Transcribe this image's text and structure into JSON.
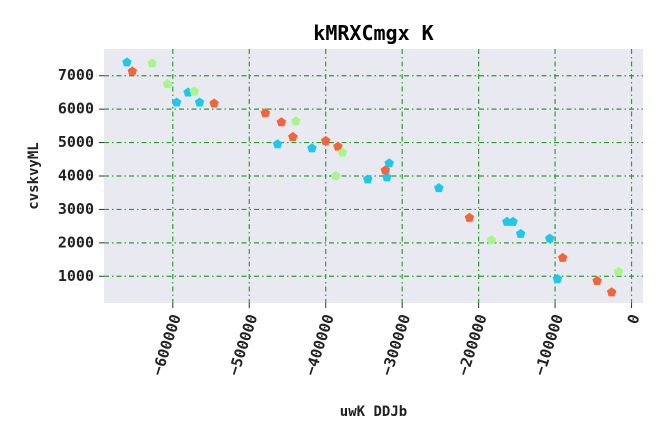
{
  "chart_data": {
    "type": "scatter",
    "title": "kMRXCmgx K",
    "xlabel": "uwK DDJb",
    "ylabel": "cvskvyML",
    "xlim": [
      -690000,
      15000
    ],
    "ylim": [
      200,
      7800
    ],
    "xticks": [
      -600000,
      -500000,
      -400000,
      -300000,
      -200000,
      -100000,
      0
    ],
    "xtick_labels": [
      "−600000",
      "−500000",
      "−400000",
      "−300000",
      "−200000",
      "−100000",
      "0"
    ],
    "yticks": [
      1000,
      2000,
      3000,
      4000,
      5000,
      6000,
      7000
    ],
    "ytick_labels": [
      "1000",
      "2000",
      "3000",
      "4000",
      "5000",
      "6000",
      "7000"
    ],
    "grid": true,
    "background": "#e9e9f2",
    "grid_color": "#2e9e2e",
    "marker": "pentagon",
    "series": [
      {
        "color": "#1ec8ea",
        "points": [
          [
            -660000,
            7400
          ],
          [
            -595000,
            6200
          ],
          [
            -580000,
            6500
          ],
          [
            -565000,
            6200
          ],
          [
            -463000,
            4950
          ],
          [
            -418000,
            4830
          ],
          [
            -345000,
            3900
          ],
          [
            -320000,
            3960
          ],
          [
            -317000,
            4380
          ],
          [
            -252000,
            3640
          ],
          [
            -163000,
            2630
          ],
          [
            -155000,
            2630
          ],
          [
            -145000,
            2270
          ],
          [
            -107000,
            2130
          ],
          [
            -97000,
            920
          ]
        ]
      },
      {
        "color": "#f2653a",
        "points": [
          [
            -653000,
            7130
          ],
          [
            -546000,
            6170
          ],
          [
            -479000,
            5880
          ],
          [
            -458000,
            5610
          ],
          [
            -443000,
            5170
          ],
          [
            -400000,
            5050
          ],
          [
            -384000,
            4880
          ],
          [
            -322000,
            4170
          ],
          [
            -212000,
            2750
          ],
          [
            -90000,
            1550
          ],
          [
            -45000,
            860
          ],
          [
            -26000,
            520
          ]
        ]
      },
      {
        "color": "#a8f58c",
        "points": [
          [
            -627000,
            7370
          ],
          [
            -607000,
            6750
          ],
          [
            -572000,
            6530
          ],
          [
            -439000,
            5640
          ],
          [
            -387000,
            4000
          ],
          [
            -378000,
            4700
          ],
          [
            -183000,
            2080
          ],
          [
            -17000,
            1130
          ]
        ]
      }
    ]
  }
}
